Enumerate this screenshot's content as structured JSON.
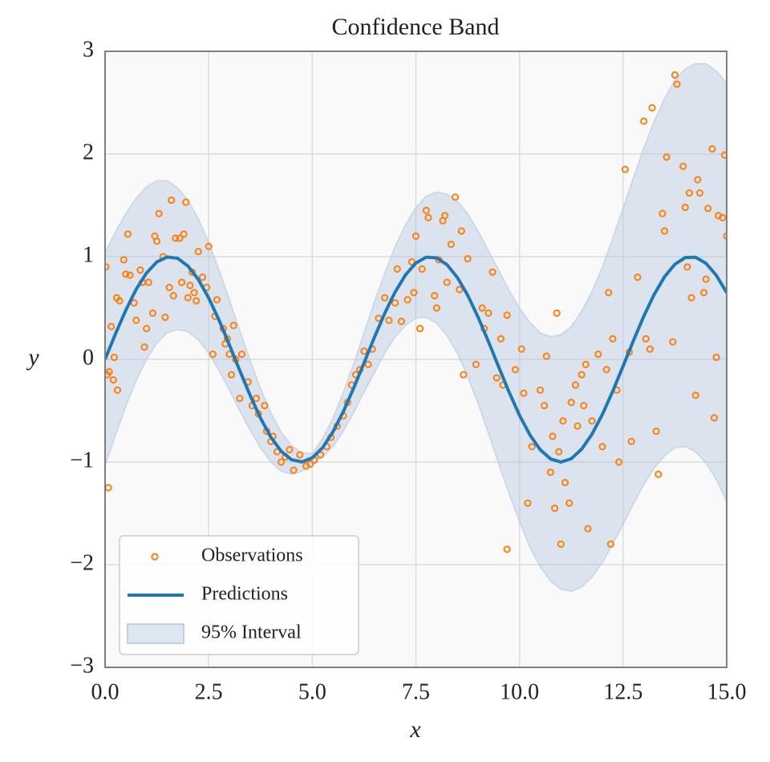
{
  "chart_data": {
    "type": "line",
    "title": "Confidence Band",
    "xlabel": "x",
    "ylabel": "y",
    "xlim": [
      0,
      15
    ],
    "ylim": [
      -3,
      3
    ],
    "xticks": [
      {
        "value": 0,
        "label": "0.0"
      },
      2.5,
      {
        "value": 5,
        "label": "5.0"
      },
      7.5,
      {
        "value": 10,
        "label": "10.0"
      },
      12.5,
      {
        "value": 15,
        "label": "15.0"
      }
    ],
    "yticks": [
      {
        "value": -3,
        "label": "−3"
      },
      {
        "value": -2,
        "label": "−2"
      },
      {
        "value": -1,
        "label": "−1"
      },
      0,
      1,
      2,
      3
    ],
    "grid": true,
    "legend": "lower left",
    "x": [
      0,
      0.25,
      0.5,
      0.75,
      1,
      1.25,
      1.5,
      1.75,
      2,
      2.25,
      2.5,
      2.75,
      3,
      3.25,
      3.5,
      3.75,
      4,
      4.25,
      4.5,
      4.75,
      5,
      5.25,
      5.5,
      5.75,
      6,
      6.25,
      6.5,
      6.75,
      7,
      7.25,
      7.5,
      7.75,
      8,
      8.25,
      8.5,
      8.75,
      9,
      9.25,
      9.5,
      9.75,
      10,
      10.25,
      10.5,
      10.75,
      11,
      11.25,
      11.5,
      11.75,
      12,
      12.25,
      12.5,
      12.75,
      13,
      13.25,
      13.5,
      13.75,
      14,
      14.25,
      14.5,
      14.75,
      15
    ],
    "series": [
      {
        "name": "Predictions",
        "color": "#1f77b4",
        "values": [
          0,
          0.247,
          0.479,
          0.682,
          0.841,
          0.949,
          0.997,
          0.984,
          0.909,
          0.778,
          0.598,
          0.382,
          0.141,
          -0.108,
          -0.351,
          -0.572,
          -0.757,
          -0.895,
          -0.978,
          -0.999,
          -0.959,
          -0.859,
          -0.706,
          -0.508,
          -0.279,
          -0.033,
          0.215,
          0.45,
          0.657,
          0.823,
          0.938,
          0.995,
          0.989,
          0.922,
          0.798,
          0.625,
          0.412,
          0.174,
          -0.075,
          -0.32,
          -0.544,
          -0.735,
          -0.88,
          -0.97,
          -1.0,
          -0.968,
          -0.875,
          -0.729,
          -0.537,
          -0.311,
          -0.066,
          0.183,
          0.42,
          0.632,
          0.804,
          0.926,
          0.991,
          0.994,
          0.935,
          0.818,
          0.65
        ]
      }
    ],
    "band": {
      "name": "95% Interval",
      "color": "#b0c4de",
      "lower": [
        -1.04,
        -0.74,
        -0.46,
        -0.21,
        0,
        0.16,
        0.26,
        0.29,
        0.27,
        0.19,
        0.06,
        -0.11,
        -0.3,
        -0.5,
        -0.69,
        -0.86,
        -1.0,
        -1.09,
        -1.12,
        -1.09,
        -1.0,
        -0.95,
        -0.85,
        -0.7,
        -0.52,
        -0.32,
        -0.13,
        0.06,
        0.22,
        0.33,
        0.4,
        0.41,
        0.35,
        0.23,
        0.06,
        -0.17,
        -0.43,
        -0.72,
        -1.02,
        -1.31,
        -1.58,
        -1.83,
        -2.02,
        -2.16,
        -2.24,
        -2.26,
        -2.22,
        -2.12,
        -1.98,
        -1.8,
        -1.61,
        -1.41,
        -1.22,
        -1.06,
        -0.94,
        -0.86,
        -0.85,
        -0.9,
        -1.01,
        -1.17,
        -1.39
      ],
      "upper": [
        1.04,
        1.24,
        1.42,
        1.57,
        1.68,
        1.74,
        1.74,
        1.67,
        1.55,
        1.37,
        1.14,
        0.87,
        0.58,
        0.28,
        -0.01,
        -0.28,
        -0.52,
        -0.71,
        -0.84,
        -0.91,
        -0.92,
        -0.77,
        -0.57,
        -0.32,
        -0.04,
        0.26,
        0.56,
        0.84,
        1.1,
        1.31,
        1.48,
        1.59,
        1.63,
        1.61,
        1.54,
        1.42,
        1.25,
        1.06,
        0.87,
        0.67,
        0.5,
        0.36,
        0.26,
        0.22,
        0.24,
        0.32,
        0.47,
        0.66,
        0.9,
        1.18,
        1.47,
        1.77,
        2.06,
        2.32,
        2.54,
        2.72,
        2.83,
        2.88,
        2.88,
        2.81,
        2.69
      ]
    },
    "scatter": {
      "name": "Observations",
      "color": "#ff7f0e",
      "x": [
        0.02,
        0.05,
        0.08,
        0.1,
        0.15,
        0.2,
        0.22,
        0.28,
        0.3,
        0.35,
        0.45,
        0.5,
        0.55,
        0.6,
        0.7,
        0.75,
        0.85,
        0.9,
        0.95,
        1.0,
        1.05,
        1.15,
        1.2,
        1.25,
        1.3,
        1.4,
        1.45,
        1.55,
        1.6,
        1.65,
        1.7,
        1.8,
        1.85,
        1.9,
        1.95,
        2.0,
        2.05,
        2.1,
        2.15,
        2.2,
        2.25,
        2.35,
        2.45,
        2.5,
        2.6,
        2.65,
        2.7,
        2.85,
        2.9,
        2.95,
        3.0,
        3.05,
        3.1,
        3.15,
        3.25,
        3.3,
        3.45,
        3.55,
        3.65,
        3.7,
        3.85,
        3.9,
        4.0,
        4.05,
        4.15,
        4.25,
        4.35,
        4.45,
        4.55,
        4.7,
        4.85,
        4.95,
        5.05,
        5.2,
        5.35,
        5.45,
        5.6,
        5.75,
        5.85,
        5.95,
        6.05,
        6.15,
        6.25,
        6.35,
        6.45,
        6.6,
        6.75,
        6.85,
        7.0,
        7.05,
        7.15,
        7.3,
        7.4,
        7.45,
        7.5,
        7.6,
        7.65,
        7.75,
        7.8,
        7.95,
        8.0,
        8.05,
        8.15,
        8.2,
        8.25,
        8.35,
        8.45,
        8.55,
        8.6,
        8.65,
        8.75,
        8.95,
        9.1,
        9.15,
        9.25,
        9.35,
        9.45,
        9.55,
        9.6,
        9.7,
        9.7,
        9.9,
        10.05,
        10.1,
        10.2,
        10.3,
        10.5,
        10.6,
        10.65,
        10.75,
        10.8,
        10.85,
        10.9,
        10.95,
        11.0,
        11.05,
        11.1,
        11.2,
        11.25,
        11.35,
        11.4,
        11.5,
        11.55,
        11.6,
        11.65,
        11.75,
        11.9,
        12.0,
        12.1,
        12.15,
        12.2,
        12.25,
        12.35,
        12.4,
        12.55,
        12.65,
        12.7,
        12.85,
        13.0,
        13.05,
        13.15,
        13.2,
        13.3,
        13.35,
        13.45,
        13.5,
        13.55,
        13.7,
        13.75,
        13.8,
        13.95,
        14.0,
        14.05,
        14.1,
        14.15,
        14.25,
        14.3,
        14.35,
        14.45,
        14.5,
        14.55,
        14.65,
        14.7,
        14.75,
        14.8,
        14.9,
        14.95,
        15.0
      ],
      "y": [
        0.9,
        -0.15,
        -1.25,
        -0.12,
        0.32,
        -0.2,
        0.02,
        0.6,
        -0.3,
        0.57,
        0.97,
        0.83,
        1.22,
        0.82,
        0.55,
        0.38,
        0.87,
        0.75,
        0.12,
        0.3,
        0.75,
        0.45,
        1.2,
        1.15,
        1.42,
        1.0,
        0.41,
        0.7,
        1.55,
        0.62,
        1.18,
        1.18,
        0.75,
        1.22,
        1.53,
        0.6,
        0.72,
        0.85,
        0.65,
        0.57,
        1.05,
        0.8,
        0.7,
        1.1,
        0.05,
        0.42,
        0.58,
        0.3,
        0.15,
        0.2,
        0.05,
        -0.15,
        0.33,
        0.0,
        -0.38,
        0.05,
        -0.22,
        -0.45,
        -0.38,
        -0.53,
        -0.45,
        -0.7,
        -0.8,
        -0.75,
        -0.9,
        -1.0,
        -0.95,
        -0.88,
        -1.08,
        -0.93,
        -1.04,
        -1.02,
        -0.98,
        -0.93,
        -0.85,
        -0.76,
        -0.65,
        -0.55,
        -0.42,
        -0.25,
        -0.15,
        -0.1,
        0.08,
        -0.05,
        0.1,
        0.4,
        0.6,
        0.38,
        0.55,
        0.88,
        0.37,
        0.58,
        0.95,
        0.65,
        1.2,
        0.3,
        0.88,
        1.45,
        1.38,
        0.62,
        0.5,
        0.97,
        1.35,
        1.4,
        0.75,
        1.12,
        1.58,
        0.68,
        1.25,
        -0.15,
        0.98,
        -0.05,
        0.5,
        0.3,
        0.45,
        0.85,
        -0.18,
        0.2,
        -0.25,
        0.43,
        -1.85,
        -0.1,
        0.1,
        -0.33,
        -1.4,
        -0.85,
        -0.3,
        -0.45,
        0.03,
        -1.1,
        -0.75,
        -1.45,
        0.45,
        -0.9,
        -1.8,
        -0.6,
        -1.2,
        -1.4,
        -0.42,
        -0.25,
        -0.65,
        -0.15,
        -0.45,
        -0.05,
        -1.65,
        -0.6,
        0.05,
        -0.85,
        -0.1,
        0.65,
        -1.8,
        0.2,
        -0.3,
        -1.0,
        1.85,
        0.07,
        -0.8,
        0.8,
        2.32,
        0.2,
        0.1,
        2.45,
        -0.7,
        -1.12,
        1.42,
        1.25,
        1.97,
        0.17,
        2.77,
        2.68,
        1.88,
        1.48,
        0.9,
        1.62,
        0.6,
        -0.35,
        1.75,
        1.62,
        0.65,
        0.78,
        1.47,
        2.05,
        -0.57,
        0.02,
        1.4,
        1.38,
        1.99,
        1.2
      ]
    }
  }
}
